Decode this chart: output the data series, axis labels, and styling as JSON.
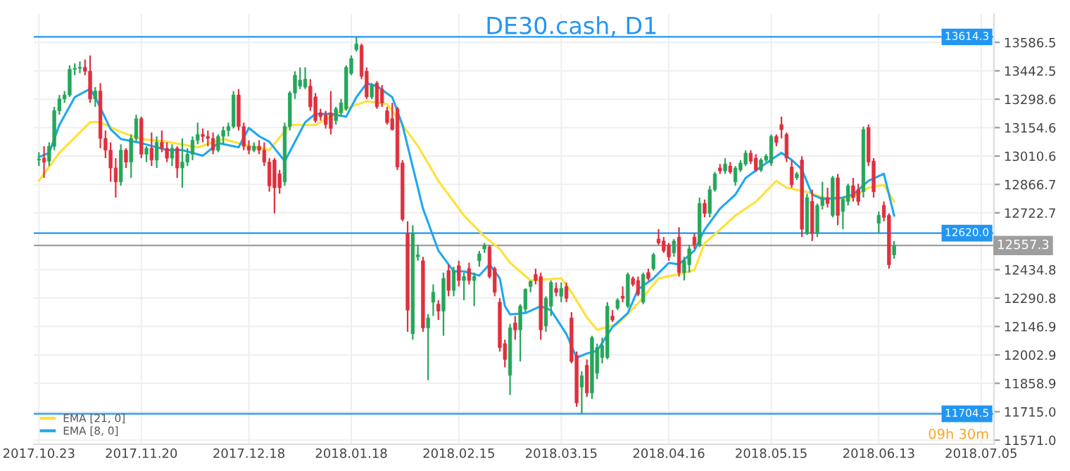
{
  "chart_data": {
    "type": "candlestick",
    "title": "DE30.cash, D1",
    "categories": [
      "2017.10.23",
      null,
      null,
      null,
      null,
      null,
      null,
      null,
      null,
      null,
      null,
      null,
      null,
      null,
      null,
      null,
      null,
      null,
      null,
      null,
      "2017.11.20",
      null,
      null,
      null,
      null,
      null,
      null,
      null,
      null,
      null,
      null,
      null,
      null,
      null,
      null,
      null,
      null,
      null,
      null,
      null,
      null,
      "2017.12.18",
      null,
      null,
      null,
      null,
      null,
      null,
      null,
      null,
      null,
      null,
      null,
      null,
      null,
      null,
      null,
      null,
      null,
      null,
      null,
      "2018.01.18",
      null,
      null,
      null,
      null,
      null,
      null,
      null,
      null,
      null,
      null,
      null,
      null,
      null,
      null,
      null,
      null,
      null,
      null,
      null,
      null,
      "2018.02.15",
      null,
      null,
      null,
      null,
      null,
      null,
      null,
      null,
      null,
      null,
      null,
      null,
      null,
      null,
      null,
      null,
      null,
      null,
      null,
      "2018.03.15",
      null,
      null,
      null,
      null,
      null,
      null,
      null,
      null,
      null,
      null,
      null,
      null,
      null,
      null,
      null,
      null,
      null,
      null,
      null,
      null,
      "2018.04.16",
      null,
      null,
      null,
      null,
      null,
      null,
      null,
      null,
      null,
      null,
      null,
      null,
      null,
      null,
      null,
      null,
      null,
      null,
      null,
      "2018.05.15",
      null,
      null,
      null,
      null,
      null,
      null,
      null,
      null,
      null,
      null,
      null,
      null,
      null,
      null,
      null,
      null,
      null,
      null,
      null,
      null,
      "2018.06.13",
      null,
      null,
      null,
      null,
      null,
      null,
      null,
      null,
      null,
      null,
      null,
      null,
      null,
      null,
      null,
      null,
      null,
      null,
      null,
      "2018.07.05"
    ],
    "ohlc": [
      [
        12990,
        13030,
        12960,
        12995
      ],
      [
        13000,
        13060,
        12900,
        12980
      ],
      [
        12985,
        13080,
        12960,
        13060
      ],
      [
        13060,
        13260,
        13040,
        13240
      ],
      [
        13240,
        13320,
        13220,
        13300
      ],
      [
        13300,
        13340,
        13280,
        13320
      ],
      [
        13320,
        13470,
        13310,
        13450
      ],
      [
        13450,
        13480,
        13420,
        13455
      ],
      [
        13455,
        13490,
        13430,
        13460
      ],
      [
        13460,
        13500,
        13420,
        13440
      ],
      [
        13440,
        13520,
        13280,
        13300
      ],
      [
        13300,
        13360,
        13260,
        13340
      ],
      [
        13340,
        13380,
        13050,
        13100
      ],
      [
        13100,
        13140,
        13000,
        13040
      ],
      [
        13040,
        13080,
        12880,
        12950
      ],
      [
        12950,
        13000,
        12800,
        12880
      ],
      [
        12880,
        13070,
        12860,
        13040
      ],
      [
        13040,
        13050,
        12950,
        12980
      ],
      [
        12980,
        13120,
        12900,
        13100
      ],
      [
        13100,
        13220,
        13080,
        13200
      ],
      [
        13200,
        13210,
        13000,
        13020
      ],
      [
        13020,
        13060,
        12980,
        13050
      ],
      [
        13050,
        13130,
        12960,
        12990
      ],
      [
        12990,
        13110,
        12950,
        13080
      ],
      [
        13080,
        13140,
        13030,
        13050
      ],
      [
        13050,
        13080,
        12980,
        13000
      ],
      [
        13000,
        13070,
        12960,
        13050
      ],
      [
        13050,
        13060,
        12900,
        12950
      ],
      [
        12950,
        13100,
        12850,
        12980
      ],
      [
        12980,
        13050,
        12960,
        13020
      ],
      [
        13020,
        13110,
        12990,
        13090
      ],
      [
        13090,
        13180,
        13070,
        13120
      ],
      [
        13120,
        13150,
        13080,
        13110
      ],
      [
        13110,
        13140,
        13060,
        13100
      ],
      [
        13100,
        13130,
        13020,
        13040
      ],
      [
        13040,
        13120,
        13030,
        13110
      ],
      [
        13110,
        13160,
        13070,
        13140
      ],
      [
        13140,
        13180,
        13110,
        13160
      ],
      [
        13160,
        13340,
        13150,
        13320
      ],
      [
        13320,
        13350,
        13140,
        13160
      ],
      [
        13160,
        13180,
        13040,
        13060
      ],
      [
        13060,
        13090,
        13020,
        13040
      ],
      [
        13040,
        13080,
        13030,
        13060
      ],
      [
        13060,
        13090,
        13020,
        13040
      ],
      [
        13040,
        13080,
        12960,
        12980
      ],
      [
        12980,
        13000,
        12830,
        12860
      ],
      [
        12990,
        13000,
        12720,
        12850
      ],
      [
        12920,
        12940,
        12820,
        12850
      ],
      [
        12880,
        13180,
        12860,
        13160
      ],
      [
        13160,
        13340,
        13140,
        13330
      ],
      [
        13330,
        13440,
        13300,
        13420
      ],
      [
        13365,
        13460,
        13350,
        13395
      ],
      [
        13360,
        13460,
        13350,
        13400
      ],
      [
        13365,
        13400,
        13240,
        13260
      ],
      [
        13310,
        13330,
        13180,
        13190
      ],
      [
        13230,
        13250,
        13190,
        13210
      ],
      [
        13220,
        13240,
        13150,
        13170
      ],
      [
        13230,
        13340,
        13120,
        13150
      ],
      [
        13190,
        13260,
        13170,
        13250
      ],
      [
        13230,
        13300,
        13210,
        13280
      ],
      [
        13250,
        13470,
        13240,
        13460
      ],
      [
        13430,
        13520,
        13420,
        13505
      ],
      [
        13550,
        13614,
        13540,
        13578
      ],
      [
        13570,
        13580,
        13400,
        13415
      ],
      [
        13440,
        13460,
        13300,
        13310
      ],
      [
        13310,
        13380,
        13300,
        13370
      ],
      [
        13380,
        13390,
        13250,
        13260
      ],
      [
        13350,
        13370,
        13260,
        13280
      ],
      [
        13240,
        13260,
        13170,
        13180
      ],
      [
        13200,
        13280,
        13140,
        13145
      ],
      [
        13250,
        13260,
        12940,
        12955
      ],
      [
        12975,
        12990,
        12680,
        12690
      ],
      [
        12620,
        12680,
        12120,
        12230
      ],
      [
        12110,
        12660,
        12080,
        12620
      ],
      [
        12500,
        12560,
        12480,
        12510
      ],
      [
        12480,
        12500,
        12120,
        12140
      ],
      [
        12140,
        12210,
        11875,
        12190
      ],
      [
        12270,
        12360,
        12200,
        12320
      ],
      [
        12260,
        12280,
        12180,
        12225
      ],
      [
        12225,
        12420,
        12100,
        12390
      ],
      [
        12430,
        12460,
        12300,
        12330
      ],
      [
        12330,
        12450,
        12300,
        12430
      ],
      [
        12455,
        12480,
        12350,
        12380
      ],
      [
        12380,
        12420,
        12280,
        12400
      ],
      [
        12440,
        12470,
        12360,
        12380
      ],
      [
        12380,
        12420,
        12250,
        12400
      ],
      [
        12480,
        12530,
        12450,
        12515
      ],
      [
        12540,
        12570,
        12520,
        12560
      ],
      [
        12550,
        12560,
        12390,
        12400
      ],
      [
        12440,
        12450,
        12300,
        12320
      ],
      [
        12270,
        12290,
        12020,
        12040
      ],
      [
        12060,
        12080,
        11940,
        11980
      ],
      [
        11900,
        12160,
        11800,
        12140
      ],
      [
        12165,
        12200,
        12080,
        12130
      ],
      [
        12130,
        12260,
        11970,
        12250
      ],
      [
        12235,
        12340,
        12220,
        12335
      ],
      [
        12350,
        12380,
        12320,
        12375
      ],
      [
        12410,
        12440,
        12360,
        12380
      ],
      [
        12400,
        12420,
        12080,
        12130
      ],
      [
        12150,
        12300,
        12120,
        12290
      ],
      [
        12250,
        12380,
        12200,
        12370
      ],
      [
        12340,
        12370,
        12300,
        12320
      ],
      [
        12300,
        12370,
        12270,
        12340
      ],
      [
        12350,
        12370,
        12270,
        12290
      ],
      [
        12190,
        12220,
        11960,
        11970
      ],
      [
        12000,
        12020,
        11740,
        11760
      ],
      [
        11840,
        11920,
        11704.5,
        11897
      ],
      [
        11950,
        11980,
        11790,
        11810
      ],
      [
        11810,
        12100,
        11780,
        12090
      ],
      [
        11910,
        12060,
        11880,
        12040
      ],
      [
        11990,
        12090,
        11960,
        12050
      ],
      [
        11990,
        12270,
        11980,
        12250
      ],
      [
        12200,
        12230,
        12170,
        12180
      ],
      [
        12240,
        12290,
        12230,
        12280
      ],
      [
        12300,
        12350,
        12270,
        12290
      ],
      [
        12250,
        12420,
        12240,
        12410
      ],
      [
        12390,
        12400,
        12350,
        12360
      ],
      [
        12380,
        12400,
        12300,
        12310
      ],
      [
        12270,
        12420,
        12260,
        12410
      ],
      [
        12420,
        12440,
        12380,
        12390
      ],
      [
        12440,
        12520,
        12430,
        12510
      ],
      [
        12590,
        12640,
        12560,
        12570
      ],
      [
        12580,
        12600,
        12520,
        12530
      ],
      [
        12560,
        12570,
        12480,
        12500
      ],
      [
        12520,
        12590,
        12500,
        12580
      ],
      [
        12600,
        12650,
        12400,
        12420
      ],
      [
        12420,
        12500,
        12380,
        12480
      ],
      [
        12460,
        12560,
        12420,
        12540
      ],
      [
        12600,
        12620,
        12540,
        12560
      ],
      [
        12560,
        12800,
        12550,
        12770
      ],
      [
        12770,
        12790,
        12700,
        12720
      ],
      [
        12720,
        12860,
        12700,
        12840
      ],
      [
        12840,
        12930,
        12830,
        12920
      ],
      [
        12950,
        12970,
        12920,
        12935
      ],
      [
        12935,
        13000,
        12920,
        12970
      ],
      [
        12960,
        12980,
        12920,
        12930
      ],
      [
        12880,
        12960,
        12860,
        12950
      ],
      [
        12940,
        12990,
        12930,
        12975
      ],
      [
        12970,
        13040,
        12960,
        13025
      ],
      [
        13025,
        13040,
        12970,
        12985
      ],
      [
        13000,
        13020,
        12930,
        12940
      ],
      [
        12940,
        13000,
        12930,
        12990
      ],
      [
        12990,
        13020,
        12980,
        13010
      ],
      [
        12975,
        13120,
        12960,
        13110
      ],
      [
        13110,
        13120,
        13060,
        13080
      ],
      [
        13170,
        13210,
        13100,
        13145
      ],
      [
        13120,
        13130,
        12980,
        13000
      ],
      [
        12955,
        12990,
        12850,
        12865
      ],
      [
        12900,
        12930,
        12890,
        12920
      ],
      [
        12990,
        13010,
        12600,
        12640
      ],
      [
        12620,
        12820,
        12610,
        12800
      ],
      [
        12780,
        12840,
        12580,
        12620
      ],
      [
        12620,
        12770,
        12600,
        12760
      ],
      [
        12760,
        12880,
        12740,
        12800
      ],
      [
        12800,
        12850,
        12750,
        12770
      ],
      [
        12710,
        12910,
        12700,
        12900
      ],
      [
        12900,
        12920,
        12660,
        12710
      ],
      [
        12730,
        12800,
        12640,
        12790
      ],
      [
        12780,
        12870,
        12760,
        12860
      ],
      [
        12860,
        12900,
        12780,
        12800
      ],
      [
        12840,
        12870,
        12760,
        12780
      ],
      [
        12830,
        13160,
        12800,
        13145
      ],
      [
        13155,
        13170,
        12960,
        12980
      ],
      [
        12985,
        13000,
        12800,
        12830
      ],
      [
        12670,
        12730,
        12620,
        12710
      ],
      [
        12760,
        12780,
        12680,
        12700
      ],
      [
        12710,
        12720,
        12440,
        12460
      ],
      [
        12510,
        12580,
        12490,
        12557.3
      ],
      null,
      null,
      null,
      null,
      null,
      null,
      null,
      null,
      null,
      null,
      null,
      null,
      null,
      null,
      null,
      null,
      null
    ],
    "series": [
      {
        "type": "line",
        "name": "EMA [21, 0]",
        "color": "#ffe135",
        "values": [
          12885,
          null,
          null,
          null,
          13027,
          null,
          null,
          null,
          null,
          null,
          13182,
          null,
          13182,
          null,
          null,
          null,
          13132,
          null,
          null,
          null,
          13097,
          null,
          null,
          null,
          null,
          13083,
          null,
          null,
          null,
          null,
          null,
          13055,
          null,
          null,
          null,
          null,
          13097,
          null,
          null,
          null,
          null,
          13062,
          null,
          null,
          null,
          13041,
          null,
          null,
          null,
          13168,
          null,
          null,
          null,
          null,
          13168,
          null,
          null,
          null,
          null,
          null,
          13252,
          null,
          null,
          null,
          13288,
          null,
          null,
          null,
          13274,
          null,
          13203,
          null,
          null,
          null,
          13062,
          null,
          null,
          null,
          12885,
          null,
          null,
          null,
          null,
          12709,
          null,
          null,
          null,
          12603,
          null,
          null,
          12540,
          null,
          12470,
          null,
          null,
          null,
          12380,
          null,
          null,
          null,
          null,
          null,
          12391,
          null,
          12320,
          null,
          null,
          12193,
          null,
          12130,
          null,
          null,
          null,
          12158,
          null,
          null,
          null,
          12264,
          null,
          null,
          null,
          12391,
          null,
          null,
          null,
          12412,
          null,
          null,
          12433,
          null,
          12568,
          null,
          null,
          12638,
          null,
          null,
          12709,
          null,
          null,
          null,
          12779,
          null,
          null,
          null,
          12885,
          null,
          12850,
          null,
          null,
          null,
          12829,
          null,
          null,
          null,
          12793,
          null,
          null,
          null,
          12793,
          null,
          null,
          null,
          12850,
          null,
          null,
          12864,
          null,
          12779,
          null,
          null,
          null,
          null,
          null,
          null,
          null,
          null,
          null,
          null,
          null,
          null,
          null,
          null,
          null,
          null,
          null
        ]
      },
      {
        "type": "line",
        "name": "EMA [8, 0]",
        "color": "#1ea7f0",
        "values": [
          13005,
          null,
          13027,
          null,
          13168,
          null,
          null,
          13309,
          null,
          null,
          13351,
          13309,
          null,
          null,
          13146,
          null,
          13097,
          null,
          null,
          null,
          13076,
          null,
          null,
          13055,
          null,
          13041,
          null,
          null,
          13041,
          null,
          null,
          null,
          13012,
          null,
          null,
          13076,
          null,
          null,
          null,
          13055,
          null,
          13153,
          null,
          13111,
          null,
          13083,
          null,
          null,
          12984,
          null,
          null,
          null,
          13182,
          null,
          13224,
          null,
          null,
          13224,
          null,
          null,
          13210,
          null,
          13309,
          null,
          13379,
          null,
          13365,
          null,
          null,
          13309,
          null,
          13168,
          null,
          12956,
          null,
          12744,
          null,
          null,
          12532,
          null,
          null,
          12426,
          null,
          12426,
          null,
          null,
          12405,
          null,
          12462,
          null,
          12391,
          12250,
          12208,
          null,
          null,
          12215,
          null,
          null,
          12250,
          null,
          12229,
          null,
          null,
          12109,
          null,
          11989,
          null,
          12010,
          null,
          12024,
          null,
          null,
          12144,
          null,
          null,
          12215,
          null,
          12335,
          null,
          null,
          12391,
          null,
          null,
          12469,
          null,
          12462,
          null,
          null,
          12532,
          null,
          12638,
          null,
          null,
          12744,
          null,
          null,
          12815,
          null,
          12899,
          null,
          null,
          12956,
          null,
          null,
          null,
          13027,
          null,
          12991,
          null,
          12942,
          null,
          12815,
          null,
          12793,
          null,
          null,
          null,
          12800,
          null,
          12815,
          null,
          null,
          12885,
          null,
          null,
          12921,
          null,
          12709,
          null,
          null,
          null,
          null,
          null,
          null,
          null,
          null,
          null,
          null,
          null,
          null,
          null,
          null,
          null,
          null,
          null
        ]
      }
    ],
    "ylim": [
      11550,
      13730
    ],
    "yticks": [
      13586.5,
      13442.5,
      13298.6,
      13154.6,
      13010.6,
      12866.7,
      12722.7,
      12434.8,
      12290.8,
      12146.9,
      12002.9,
      11858.9,
      {
        "value": 11715,
        "label": "11715.0"
      },
      {
        "value": 11571,
        "label": "11571.0"
      }
    ],
    "ref_lines": [
      {
        "axis": "y",
        "value": 13614.3,
        "label": "13614.3",
        "color": "#2196f3"
      },
      {
        "axis": "y",
        "value": 12620.0,
        "label": "12620.0",
        "color": "#2196f3"
      },
      {
        "axis": "y",
        "value": 11704.5,
        "label": "11704.5",
        "color": "#2196f3"
      },
      {
        "axis": "y",
        "value": 12557.3,
        "label": "12557.3",
        "color": "#9e9e9e"
      }
    ],
    "annotations": [
      "09h 30m"
    ],
    "grid": true,
    "legend": "bottom left"
  }
}
